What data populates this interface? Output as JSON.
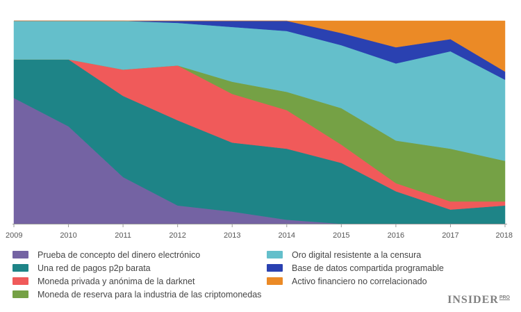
{
  "chart_data": {
    "type": "area",
    "stacked": true,
    "normalized": true,
    "title": "",
    "xlabel": "",
    "ylabel": "",
    "x": [
      "2009",
      "2010",
      "2011",
      "2012",
      "2013",
      "2014",
      "2015",
      "2016",
      "2017",
      "2018"
    ],
    "ylim": [
      0,
      100
    ],
    "grid": false,
    "legend_position": "bottom",
    "series": [
      {
        "name": "Prueba de concepto del dinero electrónico",
        "color": "#7463a3",
        "values": [
          62,
          48,
          23,
          9,
          6,
          2,
          0,
          0,
          0,
          0
        ]
      },
      {
        "name": "Una red de pagos p2p barata",
        "color": "#1e8487",
        "values": [
          19,
          33,
          40,
          42,
          34,
          35,
          30,
          16,
          7,
          9
        ]
      },
      {
        "name": "Moneda privada y anónima de la darknet",
        "color": "#f05a5a",
        "values": [
          0,
          0,
          13,
          27,
          24,
          19,
          9,
          4,
          4,
          2
        ]
      },
      {
        "name": "Moneda de reserva para la industria de las criptomonedas",
        "color": "#75a145",
        "values": [
          0,
          0,
          0,
          0,
          6,
          9,
          18,
          21,
          26,
          20
        ]
      },
      {
        "name": "Oro digital resistente a la censura",
        "color": "#64bfcb",
        "values": [
          19,
          19,
          24,
          21,
          27,
          30,
          31,
          38,
          48,
          40
        ]
      },
      {
        "name": "Base de datos compartida programable",
        "color": "#2a41b1",
        "values": [
          0,
          0,
          0,
          1,
          3,
          5,
          6,
          8,
          6,
          4
        ]
      },
      {
        "name": "Activo financiero no correlacionado",
        "color": "#eb8a26",
        "values": [
          0,
          0,
          0,
          0,
          0,
          0,
          6,
          13,
          9,
          25
        ]
      }
    ]
  },
  "brand": {
    "name": "INSIDER",
    "suffix": "PRO"
  }
}
